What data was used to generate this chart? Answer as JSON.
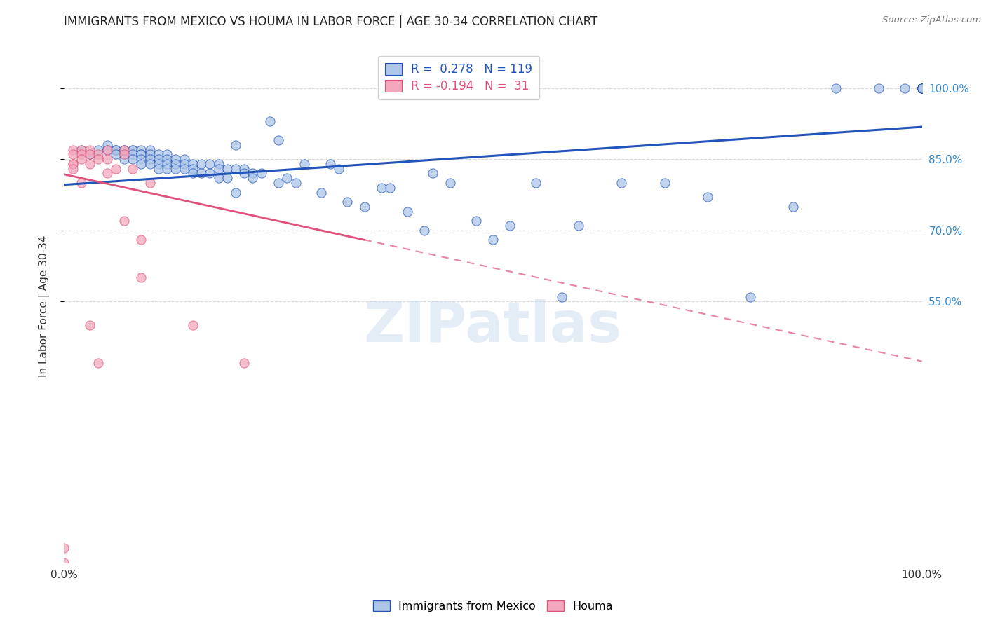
{
  "title": "IMMIGRANTS FROM MEXICO VS HOUMA IN LABOR FORCE | AGE 30-34 CORRELATION CHART",
  "source": "Source: ZipAtlas.com",
  "ylabel": "In Labor Force | Age 30-34",
  "watermark": "ZIPatlas",
  "legend_blue_r": "0.278",
  "legend_blue_n": "119",
  "legend_pink_r": "-0.194",
  "legend_pink_n": "31",
  "legend_blue_label": "Immigrants from Mexico",
  "legend_pink_label": "Houma",
  "blue_color": "#aec6e8",
  "pink_color": "#f4a8bb",
  "line_blue_color": "#2255bb",
  "line_pink_color": "#e0507a",
  "blue_scatter_x": [
    0.02,
    0.03,
    0.04,
    0.05,
    0.05,
    0.06,
    0.06,
    0.06,
    0.06,
    0.07,
    0.07,
    0.07,
    0.07,
    0.08,
    0.08,
    0.08,
    0.08,
    0.09,
    0.09,
    0.09,
    0.09,
    0.09,
    0.1,
    0.1,
    0.1,
    0.1,
    0.11,
    0.11,
    0.11,
    0.11,
    0.12,
    0.12,
    0.12,
    0.12,
    0.13,
    0.13,
    0.13,
    0.14,
    0.14,
    0.14,
    0.15,
    0.15,
    0.15,
    0.16,
    0.16,
    0.17,
    0.17,
    0.18,
    0.18,
    0.18,
    0.19,
    0.19,
    0.2,
    0.2,
    0.2,
    0.21,
    0.21,
    0.22,
    0.22,
    0.23,
    0.24,
    0.25,
    0.25,
    0.26,
    0.27,
    0.28,
    0.3,
    0.31,
    0.32,
    0.33,
    0.35,
    0.37,
    0.38,
    0.4,
    0.42,
    0.43,
    0.45,
    0.48,
    0.5,
    0.52,
    0.55,
    0.58,
    0.6,
    0.65,
    0.7,
    0.75,
    0.8,
    0.85,
    0.9,
    0.95,
    0.98,
    1.0,
    1.0,
    1.0,
    1.0,
    1.0,
    1.0,
    1.0,
    1.0,
    1.0,
    1.0,
    1.0,
    1.0,
    1.0,
    1.0,
    1.0,
    1.0,
    1.0,
    1.0,
    1.0,
    1.0,
    1.0,
    1.0,
    1.0,
    1.0,
    1.0,
    1.0,
    1.0,
    1.0,
    1.0,
    1.0
  ],
  "blue_scatter_y": [
    0.87,
    0.86,
    0.87,
    0.88,
    0.87,
    0.87,
    0.87,
    0.87,
    0.86,
    0.87,
    0.87,
    0.86,
    0.85,
    0.87,
    0.87,
    0.86,
    0.85,
    0.87,
    0.86,
    0.86,
    0.85,
    0.84,
    0.87,
    0.86,
    0.85,
    0.84,
    0.86,
    0.85,
    0.84,
    0.83,
    0.86,
    0.85,
    0.84,
    0.83,
    0.85,
    0.84,
    0.83,
    0.85,
    0.84,
    0.83,
    0.84,
    0.83,
    0.82,
    0.84,
    0.82,
    0.84,
    0.82,
    0.84,
    0.83,
    0.81,
    0.83,
    0.81,
    0.88,
    0.83,
    0.78,
    0.83,
    0.82,
    0.82,
    0.81,
    0.82,
    0.93,
    0.89,
    0.8,
    0.81,
    0.8,
    0.84,
    0.78,
    0.84,
    0.83,
    0.76,
    0.75,
    0.79,
    0.79,
    0.74,
    0.7,
    0.82,
    0.8,
    0.72,
    0.68,
    0.71,
    0.8,
    0.56,
    0.71,
    0.8,
    0.8,
    0.77,
    0.56,
    0.75,
    1.0,
    1.0,
    1.0,
    1.0,
    1.0,
    1.0,
    1.0,
    1.0,
    1.0,
    1.0,
    1.0,
    1.0,
    1.0,
    1.0,
    1.0,
    1.0,
    1.0,
    1.0,
    1.0,
    1.0,
    1.0,
    1.0,
    1.0,
    1.0,
    1.0,
    1.0,
    1.0,
    1.0,
    1.0,
    1.0,
    1.0,
    1.0,
    1.0
  ],
  "pink_scatter_x": [
    0.0,
    0.0,
    0.01,
    0.01,
    0.01,
    0.01,
    0.01,
    0.02,
    0.02,
    0.02,
    0.02,
    0.03,
    0.03,
    0.03,
    0.03,
    0.04,
    0.04,
    0.04,
    0.05,
    0.05,
    0.05,
    0.06,
    0.07,
    0.07,
    0.07,
    0.08,
    0.09,
    0.09,
    0.1,
    0.15,
    0.21
  ],
  "pink_scatter_y": [
    0.0,
    0.03,
    0.87,
    0.86,
    0.84,
    0.84,
    0.83,
    0.87,
    0.86,
    0.85,
    0.8,
    0.87,
    0.86,
    0.84,
    0.5,
    0.86,
    0.85,
    0.42,
    0.87,
    0.85,
    0.82,
    0.83,
    0.87,
    0.86,
    0.72,
    0.83,
    0.68,
    0.6,
    0.8,
    0.5,
    0.42
  ],
  "blue_line": {
    "x0": 0.0,
    "x1": 1.0,
    "y0": 0.796,
    "y1": 0.918
  },
  "pink_line_solid": {
    "x0": 0.0,
    "x1": 0.35,
    "y0": 0.818,
    "y1": 0.68
  },
  "pink_line_dash": {
    "x0": 0.35,
    "x1": 1.0,
    "y0": 0.68,
    "y1": 0.424
  },
  "xlim": [
    0.0,
    1.0
  ],
  "ylim": [
    0.0,
    1.08
  ],
  "yticks": [
    0.55,
    0.7,
    0.85,
    1.0
  ],
  "ytick_labels": [
    "55.0%",
    "70.0%",
    "85.0%",
    "100.0%"
  ],
  "background_color": "#ffffff",
  "grid_color": "#d8d8d8",
  "title_fontsize": 12,
  "axis_label_color": "#333333",
  "right_axis_color": "#3388cc"
}
